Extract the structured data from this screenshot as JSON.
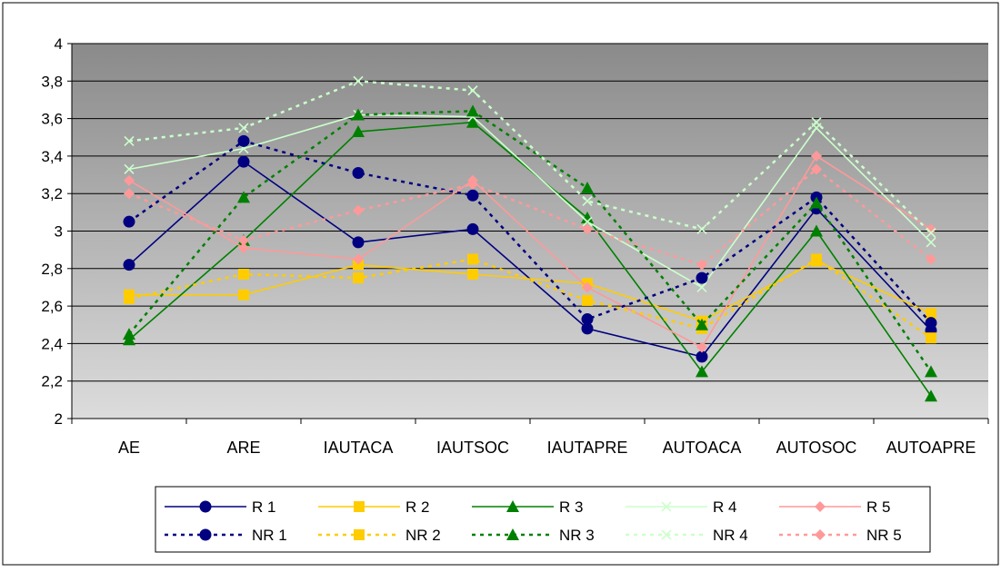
{
  "chart_data": {
    "type": "line",
    "categories": [
      "AE",
      "ARE",
      "IAUTACA",
      "IAUTSOC",
      "IAUTAPRE",
      "AUTOACA",
      "AUTOSOC",
      "AUTOAPRE"
    ],
    "ylim": [
      2,
      4
    ],
    "yticks": [
      2,
      2.2,
      2.4,
      2.6,
      2.8,
      3,
      3.2,
      3.4,
      3.6,
      3.8,
      4
    ],
    "ytick_labels": [
      "2",
      "2,2",
      "2,4",
      "2,6",
      "2,8",
      "3",
      "3,2",
      "3,4",
      "3,6",
      "3,8",
      "4"
    ],
    "grid": true,
    "legend_position": "bottom",
    "series": [
      {
        "name": "R 1",
        "color": "#000080",
        "marker": "circle",
        "dashed": false,
        "values": [
          2.82,
          3.37,
          2.94,
          3.01,
          2.48,
          2.33,
          3.12,
          2.47
        ]
      },
      {
        "name": "R 2",
        "color": "#FFCC00",
        "marker": "square",
        "dashed": false,
        "values": [
          2.66,
          2.66,
          2.82,
          2.77,
          2.72,
          2.52,
          2.84,
          2.56
        ]
      },
      {
        "name": "R 3",
        "color": "#008000",
        "marker": "triangle",
        "dashed": false,
        "values": [
          2.42,
          2.95,
          3.53,
          3.58,
          3.07,
          2.25,
          3.0,
          2.12
        ]
      },
      {
        "name": "R 4",
        "color": "#CCFFCC",
        "marker": "x",
        "dashed": false,
        "values": [
          3.33,
          3.44,
          3.62,
          3.61,
          3.05,
          2.7,
          3.55,
          2.94
        ]
      },
      {
        "name": "R 5",
        "color": "#FF9999",
        "marker": "diamond",
        "dashed": false,
        "values": [
          3.27,
          2.91,
          2.85,
          3.27,
          2.7,
          2.38,
          3.4,
          3.01
        ]
      },
      {
        "name": "NR 1",
        "color": "#000080",
        "marker": "circle",
        "dashed": true,
        "values": [
          3.05,
          3.48,
          3.31,
          3.19,
          2.53,
          2.75,
          3.18,
          2.51
        ]
      },
      {
        "name": "NR 2",
        "color": "#FFCC00",
        "marker": "square",
        "dashed": true,
        "values": [
          2.64,
          2.77,
          2.75,
          2.85,
          2.63,
          2.48,
          2.85,
          2.43
        ]
      },
      {
        "name": "NR 3",
        "color": "#008000",
        "marker": "triangle",
        "dashed": true,
        "values": [
          2.45,
          3.18,
          3.62,
          3.64,
          3.23,
          2.5,
          3.15,
          2.25
        ]
      },
      {
        "name": "NR 4",
        "color": "#CCFFCC",
        "marker": "x",
        "dashed": true,
        "values": [
          3.48,
          3.55,
          3.8,
          3.75,
          3.16,
          3.01,
          3.58,
          2.99
        ]
      },
      {
        "name": "NR 5",
        "color": "#FF9999",
        "marker": "diamond",
        "dashed": true,
        "values": [
          3.2,
          2.95,
          3.11,
          3.25,
          3.01,
          2.82,
          3.33,
          2.85
        ]
      }
    ]
  }
}
